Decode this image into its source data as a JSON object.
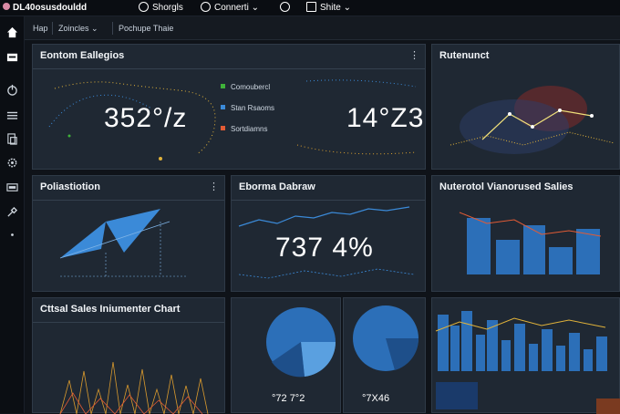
{
  "app": {
    "title": "DL40osusdouldd"
  },
  "topbar": {
    "items": [
      {
        "label": "Shorgls",
        "icon": "circle-icon"
      },
      {
        "label": "Connerti ⌄",
        "icon": "clock-icon"
      },
      {
        "label": "",
        "icon": "refresh-icon"
      },
      {
        "label": "Shite ⌄",
        "icon": "share-icon"
      }
    ]
  },
  "sidebar": {
    "icons": [
      "home-icon",
      "card-icon",
      "power-icon",
      "menu-icon",
      "document-icon",
      "settings-icon",
      "grid-icon",
      "tools-icon",
      "dot-icon"
    ]
  },
  "breadcrumb": {
    "home": "Hap",
    "section": "Zoincles ⌄",
    "page": "Pochupe Thaie"
  },
  "panels": {
    "p1": {
      "title": "Eontom Eallegios",
      "value_left": "352°/z",
      "value_right": "14°Z3",
      "legend": [
        {
          "label": "Comoubercl",
          "color": "#3fb23a"
        },
        {
          "label": "Stan Rsaoms",
          "color": "#3b8ad8"
        },
        {
          "label": "Sortdiamns",
          "color": "#e25b35"
        }
      ]
    },
    "p2": {
      "title": "Rutenunct"
    },
    "p3": {
      "title": "Poliastiotion"
    },
    "p4": {
      "title": "Eborma Dabraw",
      "value": "737 4%"
    },
    "p5": {
      "title": "Nuterotol Vianorused Salies"
    },
    "p6": {
      "title": "Cttsal Sales Iniumenter Chart"
    },
    "p7": {
      "value": "°72 7°2"
    },
    "p8": {
      "value": "°7X46"
    }
  },
  "colors": {
    "accent": "#3b8ad8",
    "panel": "#1f2833",
    "background": "#0f1319"
  }
}
